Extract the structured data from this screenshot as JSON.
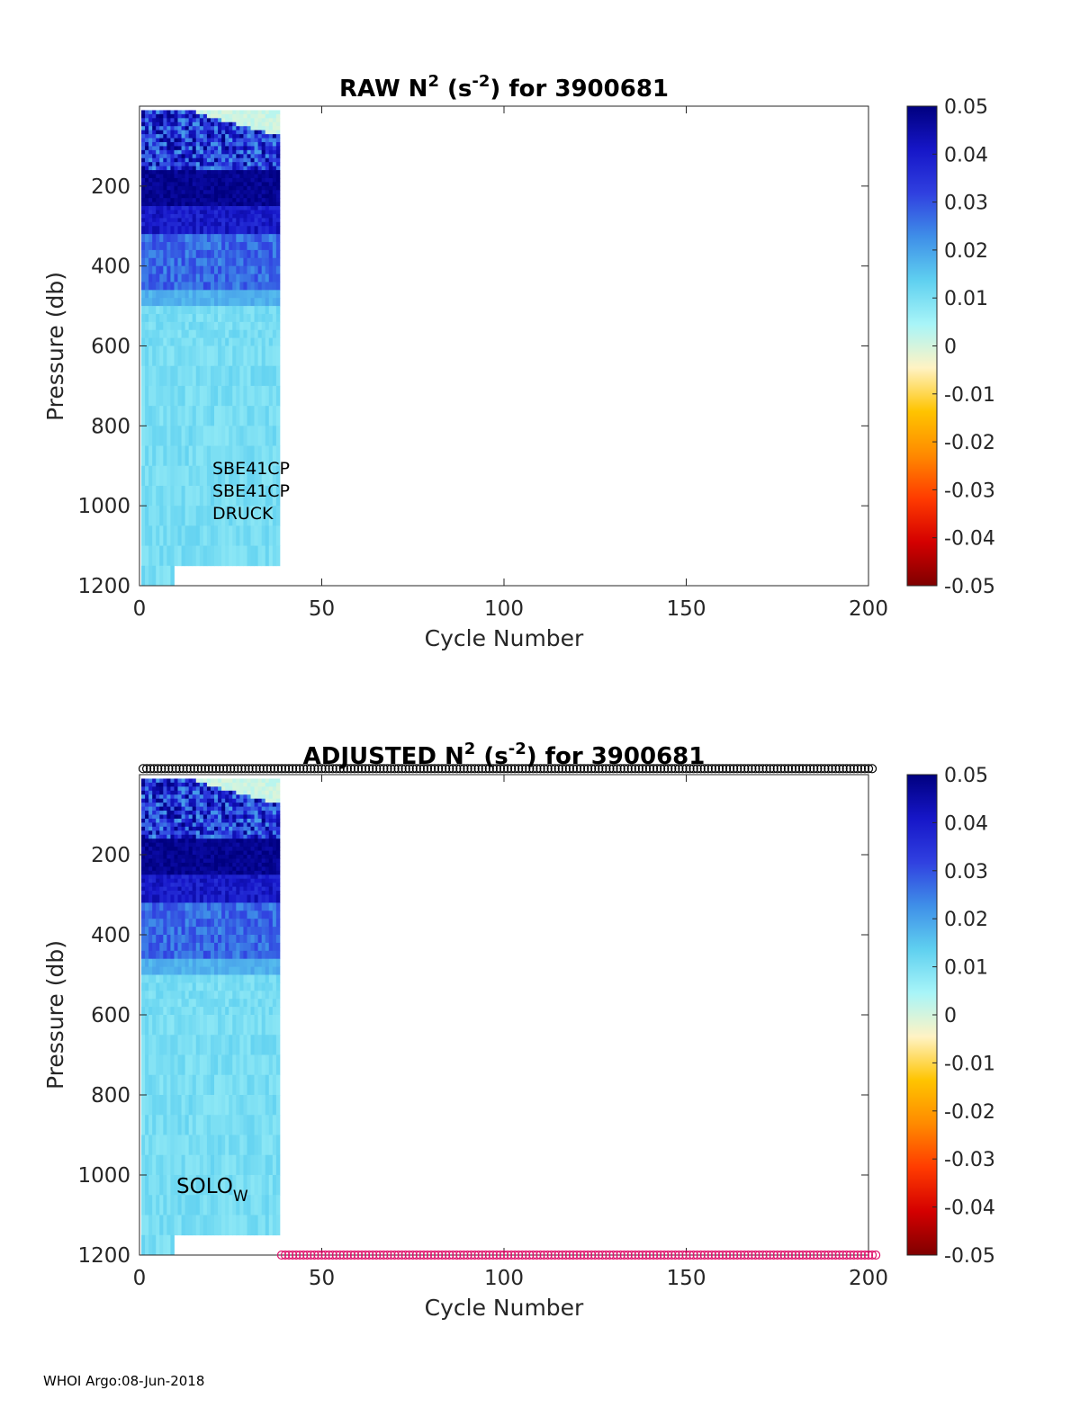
{
  "footer": "WHOI Argo:08-Jun-2018",
  "colors": {
    "colormap": [
      "#7f0000",
      "#d40000",
      "#ff3b00",
      "#ff8a00",
      "#ffc400",
      "#fff3c4",
      "#a8f5f8",
      "#5fd0f0",
      "#3f8fe8",
      "#3040e0",
      "#1616c8",
      "#00007f"
    ],
    "raw_float_marker": "#000000",
    "adjusted_marker": "#e0156e"
  },
  "chart_data": [
    {
      "type": "heatmap",
      "title_main": "RAW N",
      "title_sup1": "2",
      "title_mid": " (s",
      "title_sup2": "-2",
      "title_end": ") for 3900681",
      "xlabel": "Cycle Number",
      "ylabel": "Pressure (db)",
      "xlim": [
        0,
        200
      ],
      "ylim": [
        1200,
        0
      ],
      "y_reversed": true,
      "xticks": [
        "0",
        "50",
        "100",
        "150",
        "200"
      ],
      "yticks": [
        "200",
        "400",
        "600",
        "800",
        "1000",
        "1200"
      ],
      "colorbar": {
        "clim": [
          -0.05,
          0.05
        ],
        "ticks": [
          "0.05",
          "0.04",
          "0.03",
          "0.02",
          "0.01",
          "0",
          "-0.01",
          "-0.02",
          "-0.03",
          "-0.04",
          "-0.05"
        ]
      },
      "data_extent": {
        "cycles": [
          1,
          38
        ],
        "pressure_min": 10,
        "pressure_max": 1200
      },
      "annotations": [
        "SBE41CP",
        "SBE41CP",
        "DRUCK"
      ]
    },
    {
      "type": "heatmap",
      "title_main": "ADJUSTED N",
      "title_sup1": "2",
      "title_mid": " (s",
      "title_sup2": "-2",
      "title_end": ") for 3900681",
      "xlabel": "Cycle Number",
      "ylabel": "Pressure (db)",
      "xlim": [
        0,
        200
      ],
      "ylim": [
        1200,
        0
      ],
      "y_reversed": true,
      "xticks": [
        "0",
        "50",
        "100",
        "150",
        "200"
      ],
      "yticks": [
        "200",
        "400",
        "600",
        "800",
        "1000",
        "1200"
      ],
      "colorbar": {
        "clim": [
          -0.05,
          0.05
        ],
        "ticks": [
          "0.05",
          "0.04",
          "0.03",
          "0.02",
          "0.01",
          "0",
          "-0.01",
          "-0.02",
          "-0.03",
          "-0.04",
          "-0.05"
        ]
      },
      "data_extent": {
        "cycles": [
          1,
          38
        ],
        "pressure_min": 10,
        "pressure_max": 1200
      },
      "marker_rows": [
        {
          "pressure": -15,
          "cycles": [
            1,
            201
          ],
          "color": "black"
        },
        {
          "pressure": 1200,
          "cycles": [
            39,
            202
          ],
          "color": "magenta"
        }
      ],
      "annotation_main": "SOLO",
      "annotation_sub": "W"
    }
  ]
}
